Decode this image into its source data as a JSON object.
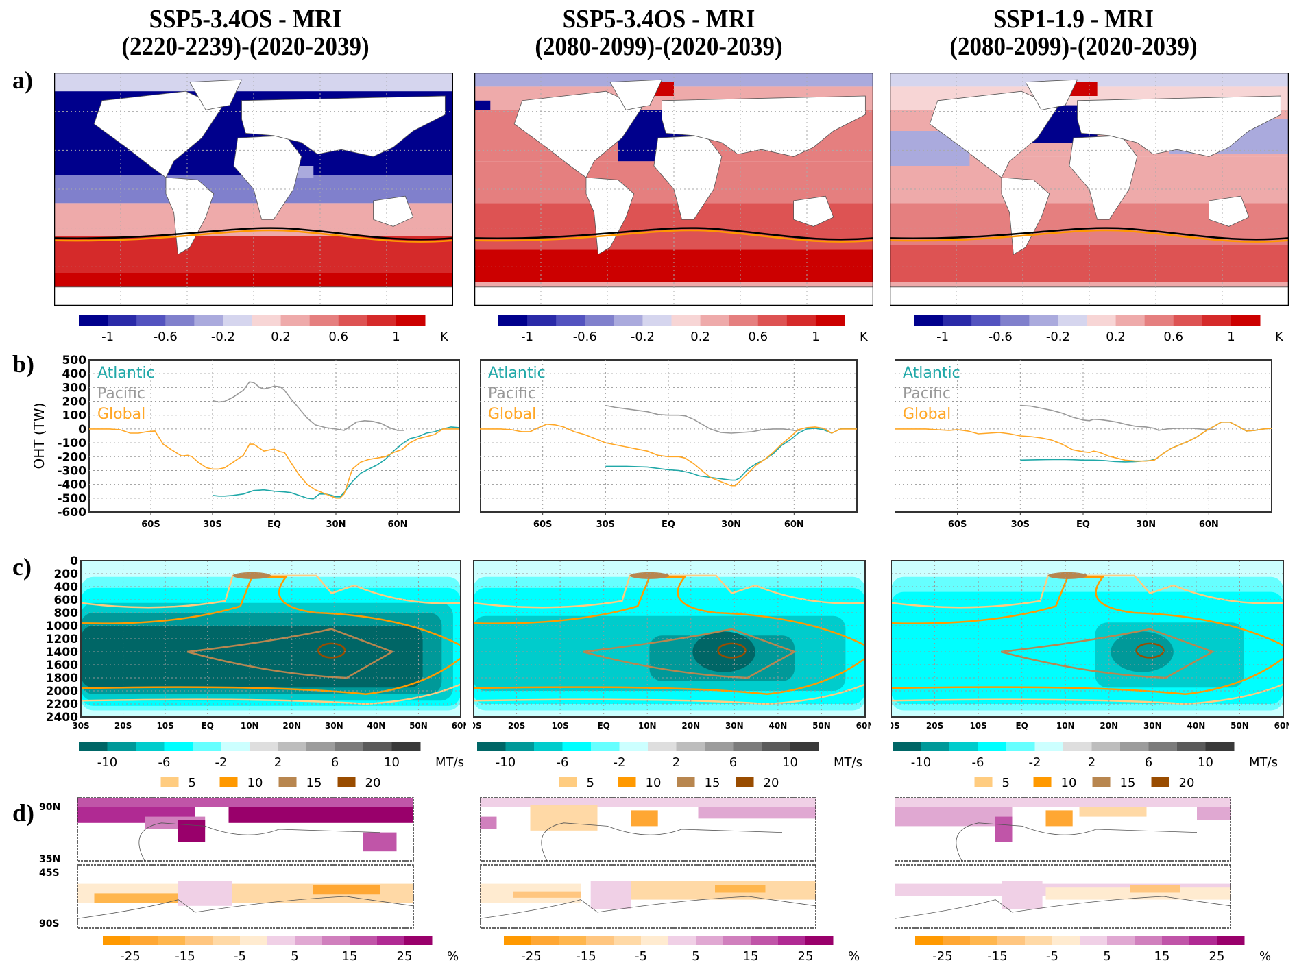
{
  "columns": [
    {
      "title_line1": "SSP5-3.4OS - MRI",
      "title_line2": "(2220-2239)-(2020-2039)"
    },
    {
      "title_line1": "SSP5-3.4OS - MRI",
      "title_line2": "(2080-2099)-(2020-2039)"
    },
    {
      "title_line1": "SSP1-1.9 - MRI",
      "title_line2": "(2080-2099)-(2020-2039)"
    }
  ],
  "row_labels": [
    "a)",
    "b)",
    "c)",
    "d)"
  ],
  "colorbars": {
    "a": {
      "unit": "K",
      "ticks": [
        "-1",
        "-0.6",
        "-0.2",
        "0.2",
        "0.6",
        "1"
      ],
      "colors": [
        "#00008c",
        "#2a2aa8",
        "#5353bf",
        "#8080cc",
        "#aaaadd",
        "#d5d5ee",
        "#f7d5d5",
        "#eeaaaa",
        "#e57f7f",
        "#dd5353",
        "#d52a2a",
        "#cc0000"
      ]
    },
    "c": {
      "unit": "MT/s",
      "ticks": [
        "-10",
        "-6",
        "-2",
        "2",
        "6",
        "10"
      ],
      "colors": [
        "#006666",
        "#009999",
        "#00cccc",
        "#00ffff",
        "#66ffff",
        "#ccffff",
        "#dedede",
        "#bdbdbd",
        "#9c9c9c",
        "#7b7b7b",
        "#5a5a5a",
        "#393939"
      ],
      "contour_legend": [
        {
          "label": "5",
          "color": "#ffcc80"
        },
        {
          "label": "10",
          "color": "#ff9900"
        },
        {
          "label": "15",
          "color": "#b8864f"
        },
        {
          "label": "20",
          "color": "#994c00"
        }
      ]
    },
    "d": {
      "unit": "%",
      "ticks": [
        "-25",
        "-15",
        "-5",
        "5",
        "15",
        "25"
      ],
      "colors": [
        "#ff9900",
        "#ffa733",
        "#ffb64d",
        "#ffc680",
        "#ffd9a6",
        "#ffebd0",
        "#f0d0e6",
        "#e0a8d2",
        "#d080bd",
        "#c055a8",
        "#b02a93",
        "#99006b"
      ]
    }
  },
  "panel_d": {
    "north_top": "90N",
    "north_bottom": "35N",
    "south_top": "45S",
    "south_bottom": "90S"
  },
  "chart_data": [
    {
      "panel": "b-col1",
      "type": "line",
      "title": "",
      "xlabel": "",
      "ylabel": "OHT (TW)",
      "xlim": [
        -90,
        90
      ],
      "ylim": [
        -600,
        500
      ],
      "xticks": [
        {
          "value": -60,
          "label": "60S"
        },
        {
          "value": -30,
          "label": "30S"
        },
        {
          "value": 0,
          "label": "EQ"
        },
        {
          "value": 30,
          "label": "30N"
        },
        {
          "value": 60,
          "label": "60N"
        }
      ],
      "yticks": [
        500,
        400,
        300,
        200,
        100,
        0,
        -100,
        -200,
        -300,
        -400,
        -500,
        -600
      ],
      "grid": true,
      "legend": "top-left",
      "series": [
        {
          "name": "Atlantic",
          "color": "#20a8a8",
          "x": [
            -30,
            -27,
            -24,
            -20,
            -15,
            -10,
            -5,
            0,
            5,
            8,
            12,
            16,
            19,
            22,
            25,
            28,
            30,
            32,
            34,
            38,
            42,
            46,
            50,
            54,
            58,
            62,
            66,
            70,
            74,
            78,
            82,
            86,
            90
          ],
          "y": [
            -480,
            -485,
            -485,
            -480,
            -470,
            -445,
            -440,
            -450,
            -455,
            -460,
            -480,
            -500,
            -505,
            -470,
            -470,
            -480,
            -490,
            -490,
            -460,
            -380,
            -320,
            -290,
            -260,
            -220,
            -160,
            -110,
            -70,
            -55,
            -30,
            -20,
            0,
            15,
            10
          ]
        },
        {
          "name": "Pacific",
          "color": "#999999",
          "x": [
            -30,
            -27,
            -24,
            -20,
            -15,
            -12,
            -10,
            -7,
            -5,
            -2,
            0,
            3,
            5,
            8,
            12,
            16,
            20,
            25,
            30,
            34,
            36,
            40,
            44,
            48,
            52,
            56,
            60,
            63
          ],
          "y": [
            205,
            195,
            200,
            230,
            280,
            340,
            335,
            300,
            290,
            300,
            310,
            305,
            280,
            220,
            150,
            80,
            30,
            10,
            0,
            -10,
            10,
            50,
            60,
            55,
            40,
            10,
            -10,
            -10
          ]
        },
        {
          "name": "Global",
          "color": "#ffa726",
          "x": [
            -90,
            -80,
            -75,
            -70,
            -66,
            -62,
            -58,
            -54,
            -50,
            -45,
            -42,
            -40,
            -37,
            -33,
            -30,
            -27,
            -24,
            -20,
            -15,
            -12,
            -10,
            -7,
            -5,
            -2,
            0,
            3,
            5,
            8,
            12,
            16,
            20,
            25,
            30,
            32,
            34,
            38,
            42,
            46,
            50,
            54,
            58,
            62,
            66,
            70,
            74,
            78,
            82,
            86,
            90
          ],
          "y": [
            0,
            0,
            -5,
            -30,
            -30,
            -20,
            -15,
            -110,
            -150,
            -195,
            -190,
            -200,
            -240,
            -280,
            -290,
            -290,
            -280,
            -240,
            -190,
            -110,
            -110,
            -140,
            -160,
            -150,
            -145,
            -165,
            -170,
            -240,
            -330,
            -400,
            -440,
            -470,
            -500,
            -500,
            -470,
            -290,
            -240,
            -220,
            -210,
            -200,
            -170,
            -150,
            -100,
            -70,
            -55,
            -40,
            0,
            0,
            0
          ]
        }
      ]
    },
    {
      "panel": "b-col2",
      "type": "line",
      "ylabel": "OHT (TW)",
      "xlim": [
        -90,
        90
      ],
      "ylim": [
        -600,
        500
      ],
      "xticks": [
        {
          "value": -60,
          "label": "60S"
        },
        {
          "value": -30,
          "label": "30S"
        },
        {
          "value": 0,
          "label": "EQ"
        },
        {
          "value": 30,
          "label": "30N"
        },
        {
          "value": 60,
          "label": "60N"
        }
      ],
      "grid": true,
      "legend": "top-left",
      "series": [
        {
          "name": "Atlantic",
          "color": "#20a8a8",
          "x": [
            -30,
            -20,
            -10,
            -5,
            0,
            5,
            10,
            15,
            20,
            25,
            30,
            32,
            34,
            38,
            42,
            46,
            50,
            54,
            58,
            62,
            66,
            70,
            74,
            78,
            82,
            86,
            90
          ],
          "y": [
            -270,
            -270,
            -275,
            -285,
            -295,
            -300,
            -315,
            -340,
            -350,
            -360,
            -370,
            -370,
            -355,
            -290,
            -250,
            -220,
            -180,
            -120,
            -80,
            -30,
            0,
            5,
            -5,
            -30,
            0,
            5,
            5
          ]
        },
        {
          "name": "Pacific",
          "color": "#999999",
          "x": [
            -30,
            -25,
            -20,
            -15,
            -10,
            -5,
            0,
            5,
            8,
            12,
            16,
            20,
            25,
            30,
            35,
            40,
            45,
            50,
            55,
            60,
            63
          ],
          "y": [
            170,
            155,
            145,
            135,
            125,
            105,
            100,
            100,
            95,
            70,
            35,
            0,
            -25,
            -30,
            -25,
            -20,
            -5,
            0,
            0,
            -10,
            -10
          ]
        },
        {
          "name": "Global",
          "color": "#ffa726",
          "x": [
            -90,
            -80,
            -75,
            -70,
            -66,
            -62,
            -58,
            -54,
            -50,
            -45,
            -40,
            -35,
            -30,
            -25,
            -20,
            -15,
            -10,
            -5,
            0,
            5,
            8,
            12,
            16,
            20,
            25,
            30,
            32,
            34,
            38,
            42,
            46,
            50,
            54,
            58,
            62,
            66,
            70,
            74,
            78,
            82,
            86,
            90
          ],
          "y": [
            0,
            0,
            -5,
            -20,
            -20,
            10,
            35,
            30,
            15,
            -20,
            -40,
            -70,
            -100,
            -115,
            -130,
            -145,
            -160,
            -190,
            -200,
            -200,
            -210,
            -250,
            -300,
            -350,
            -380,
            -410,
            -410,
            -380,
            -320,
            -260,
            -220,
            -170,
            -110,
            -60,
            -5,
            10,
            15,
            5,
            -30,
            0,
            0,
            0
          ]
        }
      ]
    },
    {
      "panel": "b-col3",
      "type": "line",
      "ylabel": "OHT (TW)",
      "xlim": [
        -90,
        90
      ],
      "ylim": [
        -600,
        500
      ],
      "xticks": [
        {
          "value": -60,
          "label": "60S"
        },
        {
          "value": -30,
          "label": "30S"
        },
        {
          "value": 0,
          "label": "EQ"
        },
        {
          "value": 30,
          "label": "30N"
        },
        {
          "value": 60,
          "label": "60N"
        }
      ],
      "grid": true,
      "legend": "top-left",
      "series": [
        {
          "name": "Atlantic",
          "color": "#20a8a8",
          "x": [
            -30,
            -20,
            -10,
            -5,
            0,
            5,
            10,
            15,
            20,
            25,
            30,
            32,
            35,
            38,
            42,
            46,
            50,
            54,
            58,
            60,
            62,
            66,
            70,
            74,
            78,
            82,
            86,
            90
          ],
          "y": [
            -225,
            -222,
            -220,
            -222,
            -225,
            -225,
            -228,
            -235,
            -238,
            -236,
            -230,
            -228,
            -215,
            -180,
            -140,
            -115,
            -90,
            -60,
            -20,
            0,
            15,
            50,
            50,
            20,
            -15,
            -10,
            0,
            5
          ]
        },
        {
          "name": "Pacific",
          "color": "#999999",
          "x": [
            -30,
            -25,
            -20,
            -15,
            -10,
            -5,
            0,
            3,
            5,
            8,
            12,
            16,
            20,
            25,
            30,
            34,
            36,
            40,
            44,
            48,
            52,
            56,
            60,
            63
          ],
          "y": [
            170,
            165,
            150,
            135,
            115,
            85,
            65,
            60,
            70,
            68,
            60,
            50,
            35,
            20,
            15,
            5,
            -10,
            0,
            5,
            5,
            5,
            0,
            -5,
            -5
          ]
        },
        {
          "name": "Global",
          "color": "#ffa726",
          "x": [
            -90,
            -80,
            -75,
            -70,
            -64,
            -60,
            -55,
            -50,
            -45,
            -40,
            -35,
            -30,
            -25,
            -20,
            -15,
            -10,
            -5,
            0,
            3,
            5,
            8,
            12,
            16,
            20,
            25,
            30,
            34,
            38,
            42,
            46,
            50,
            54,
            58,
            60,
            62,
            66,
            70,
            74,
            78,
            82,
            86,
            90
          ],
          "y": [
            0,
            0,
            0,
            -5,
            -10,
            -5,
            -15,
            -35,
            -30,
            -25,
            -35,
            -50,
            -55,
            -65,
            -80,
            -110,
            -150,
            -165,
            -170,
            -160,
            -170,
            -195,
            -210,
            -225,
            -232,
            -232,
            -225,
            -180,
            -140,
            -115,
            -90,
            -60,
            -20,
            0,
            15,
            50,
            50,
            20,
            -15,
            -10,
            0,
            5
          ]
        }
      ]
    },
    {
      "panel": "c-all",
      "type": "heatmap",
      "ylabel": "",
      "yticks": [
        0,
        200,
        400,
        600,
        800,
        1000,
        1200,
        1400,
        1600,
        1800,
        2000,
        2200,
        2400
      ],
      "xticks": [
        "30S",
        "20S",
        "10S",
        "EQ",
        "10N",
        "20N",
        "30N",
        "40N",
        "50N",
        "60N"
      ],
      "ylim": [
        2400,
        0
      ],
      "xlim": [
        -30,
        60
      ],
      "colorbar_unit": "MT/s",
      "contour_levels": [
        5,
        10,
        15,
        20
      ]
    }
  ]
}
